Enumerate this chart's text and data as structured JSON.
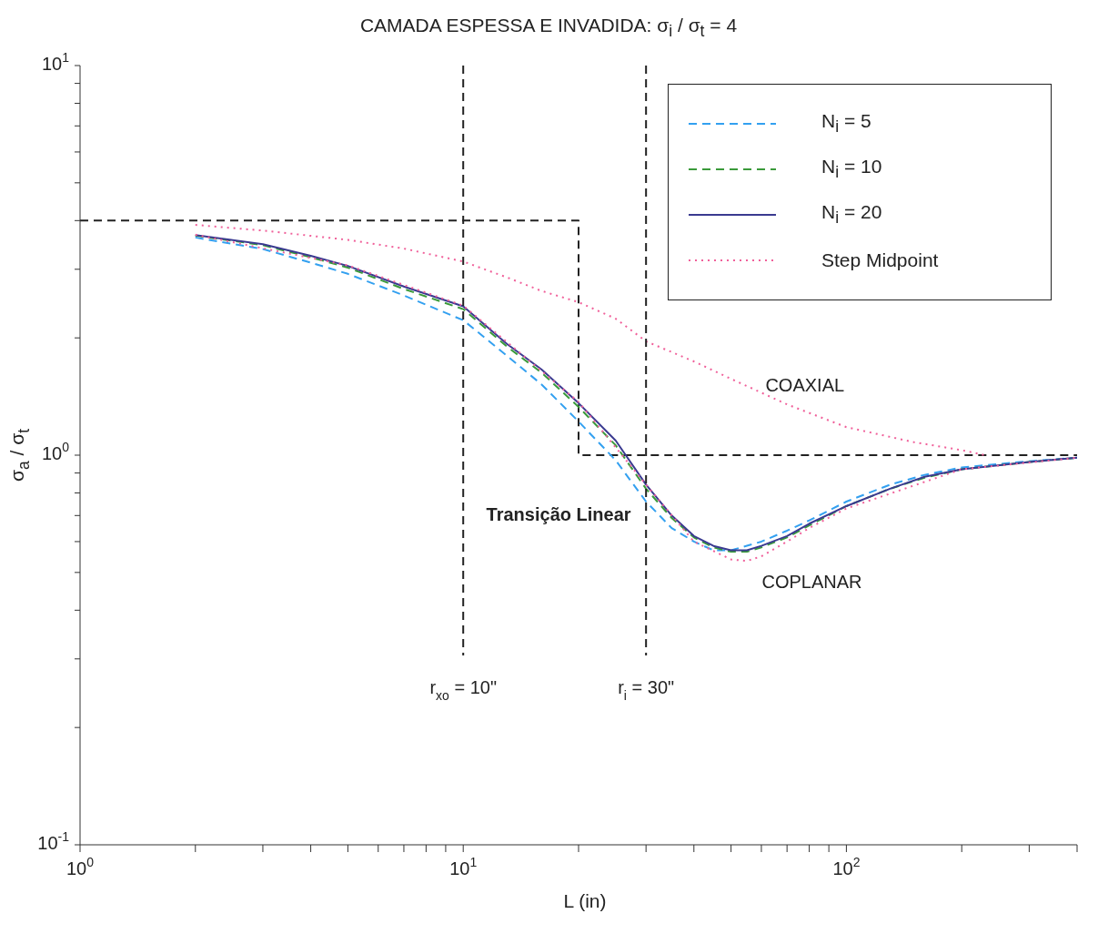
{
  "chart_data": {
    "type": "line",
    "title": "CAMADA ESPESSA E INVADIDA: σ$_{i}$ / σ$_{t}$ = 4",
    "xlabel": "L (in)",
    "ylabel": "σ$_{a}$ / σ$_{t}$",
    "log": "xy",
    "grid": false,
    "legend": "top right",
    "marker": "none",
    "xlim": [
      1,
      400
    ],
    "ylim": [
      0.1,
      10
    ],
    "xticks": [
      {
        "value": 1,
        "label": "10$^{0}$"
      },
      {
        "value": 2,
        "label": null
      },
      {
        "value": 3,
        "label": null
      },
      {
        "value": 4,
        "label": null
      },
      {
        "value": 5,
        "label": null
      },
      {
        "value": 6,
        "label": null
      },
      {
        "value": 7,
        "label": null
      },
      {
        "value": 8,
        "label": null
      },
      {
        "value": 9,
        "label": null
      },
      {
        "value": 10,
        "label": "10$^{1}$"
      },
      {
        "value": 20,
        "label": null
      },
      {
        "value": 30,
        "label": null
      },
      {
        "value": 40,
        "label": null
      },
      {
        "value": 50,
        "label": null
      },
      {
        "value": 60,
        "label": null
      },
      {
        "value": 70,
        "label": null
      },
      {
        "value": 80,
        "label": null
      },
      {
        "value": 90,
        "label": null
      },
      {
        "value": 100,
        "label": "10$^{2}$"
      },
      {
        "value": 200,
        "label": null
      },
      {
        "value": 300,
        "label": null
      },
      {
        "value": 400,
        "label": null
      }
    ],
    "yticks": [
      {
        "value": 0.1,
        "label": "10$^{-1}$"
      },
      {
        "value": 0.2,
        "label": null
      },
      {
        "value": 0.3,
        "label": null
      },
      {
        "value": 0.4,
        "label": null
      },
      {
        "value": 0.5,
        "label": null
      },
      {
        "value": 0.6,
        "label": null
      },
      {
        "value": 0.7,
        "label": null
      },
      {
        "value": 0.8,
        "label": null
      },
      {
        "value": 0.9,
        "label": null
      },
      {
        "value": 1,
        "label": "10$^{0}$"
      },
      {
        "value": 2,
        "label": null
      },
      {
        "value": 3,
        "label": null
      },
      {
        "value": 4,
        "label": null
      },
      {
        "value": 5,
        "label": null
      },
      {
        "value": 6,
        "label": null
      },
      {
        "value": 7,
        "label": null
      },
      {
        "value": 8,
        "label": null
      },
      {
        "value": 9,
        "label": null
      },
      {
        "value": 10,
        "label": "10$^{1}$"
      }
    ],
    "series": [
      {
        "color": "#222222",
        "line_style": "dashed",
        "x": [
          1,
          20,
          20,
          400
        ],
        "values": [
          4,
          4,
          1,
          1
        ]
      },
      {
        "name": "N$_{i}$ = 5",
        "color": "#33a0f0",
        "line_style": "dashed",
        "x": [
          2,
          3,
          4,
          5,
          7,
          10,
          13,
          16,
          20,
          25,
          30,
          35,
          40,
          45,
          50,
          60,
          70,
          80,
          100,
          130,
          160,
          200,
          300,
          400
        ],
        "values": [
          3.62,
          3.38,
          3.12,
          2.92,
          2.57,
          2.22,
          1.8,
          1.52,
          1.22,
          0.97,
          0.76,
          0.65,
          0.6,
          0.57,
          0.57,
          0.6,
          0.64,
          0.68,
          0.76,
          0.84,
          0.89,
          0.93,
          0.965,
          0.985
        ]
      },
      {
        "name": "N$_{i}$ = 10",
        "color": "#3a9a3a",
        "line_style": "dashed",
        "x": [
          2,
          3,
          4,
          5,
          7,
          10,
          13,
          16,
          20,
          25,
          30,
          35,
          40,
          45,
          50,
          55,
          60,
          70,
          80,
          100,
          130,
          160,
          200,
          300,
          400
        ],
        "values": [
          3.66,
          3.46,
          3.22,
          3.03,
          2.67,
          2.37,
          1.9,
          1.63,
          1.33,
          1.06,
          0.82,
          0.69,
          0.615,
          0.58,
          0.565,
          0.565,
          0.58,
          0.615,
          0.66,
          0.74,
          0.82,
          0.875,
          0.92,
          0.96,
          0.985
        ]
      },
      {
        "name": "N$_{i}$ = 20",
        "color": "#3a3a90",
        "line_style": "solid",
        "x": [
          2,
          3,
          4,
          5,
          7,
          10,
          13,
          16,
          20,
          25,
          30,
          35,
          40,
          45,
          50,
          55,
          60,
          70,
          80,
          100,
          130,
          160,
          200,
          300,
          400
        ],
        "values": [
          3.67,
          3.48,
          3.25,
          3.06,
          2.71,
          2.41,
          1.93,
          1.66,
          1.36,
          1.09,
          0.84,
          0.7,
          0.62,
          0.585,
          0.57,
          0.57,
          0.585,
          0.62,
          0.667,
          0.74,
          0.82,
          0.88,
          0.92,
          0.96,
          0.985
        ]
      },
      {
        "name": "Step Midpoint",
        "color": "#f0609a",
        "line_style": "dotted",
        "x": [
          2,
          3,
          5,
          7,
          10,
          13,
          16,
          20,
          25,
          30,
          40,
          50,
          70,
          100,
          150,
          200,
          230
        ],
        "values": [
          3.9,
          3.77,
          3.57,
          3.39,
          3.14,
          2.86,
          2.64,
          2.47,
          2.24,
          1.96,
          1.74,
          1.57,
          1.35,
          1.18,
          1.08,
          1.03,
          1.0
        ]
      },
      {
        "color": "#f0609a",
        "line_style": "dotted",
        "x": [
          2,
          5,
          10,
          20,
          30,
          40,
          50,
          55,
          60,
          70,
          80,
          100,
          200,
          400
        ],
        "values": [
          3.68,
          3.07,
          2.42,
          1.37,
          0.84,
          0.6,
          0.54,
          0.535,
          0.55,
          0.6,
          0.65,
          0.73,
          0.92,
          0.985
        ]
      }
    ],
    "ref_lines": [
      {
        "axis": "x",
        "value": 10,
        "label": "r$_{xo}$ = 10\"",
        "color": "#222222",
        "line_style": "dashed"
      },
      {
        "axis": "x",
        "value": 30,
        "label": "r$_{i}$ = 30\"",
        "color": "#222222",
        "line_style": "dashed"
      }
    ],
    "annotations": [
      "Transição Linear",
      "COAXIAL",
      "COPLANAR"
    ]
  }
}
